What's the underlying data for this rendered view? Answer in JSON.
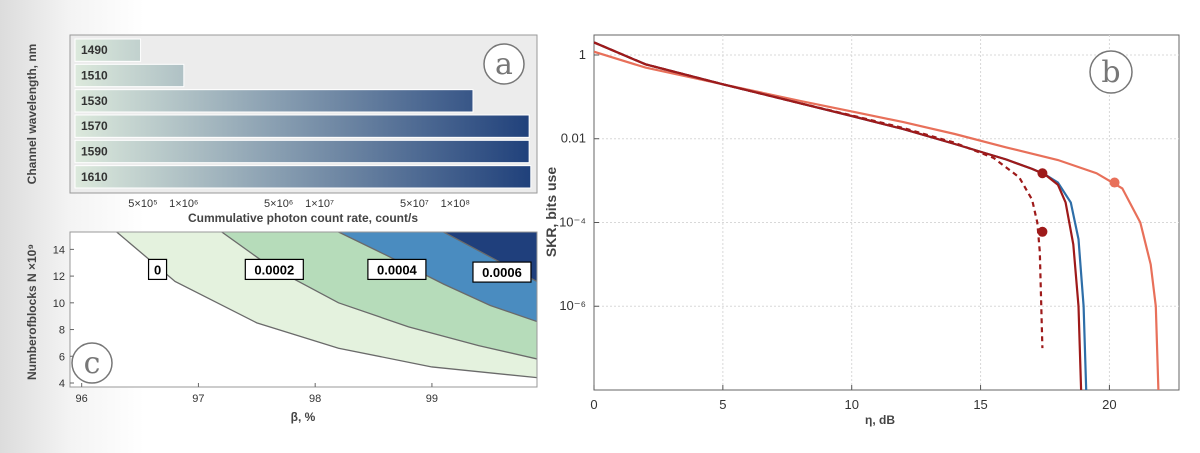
{
  "panels": {
    "a": {
      "letter": "a"
    },
    "b": {
      "letter": "b"
    },
    "c": {
      "letter": "c"
    }
  },
  "chart_data": [
    {
      "type": "bar",
      "panel": "a",
      "orientation": "horizontal",
      "xscale": "log",
      "xlabel": "Cummulative photon count rate, count/s",
      "ylabel": "Channel wavelength, nm",
      "xlim": [
        150000,
        400000000
      ],
      "xticks": [
        {
          "value": 500000,
          "label": "5×10⁵"
        },
        {
          "value": 1000000,
          "label": "1×10⁶"
        },
        {
          "value": 5000000,
          "label": "5×10⁶"
        },
        {
          "value": 10000000,
          "label": "1×10⁷"
        },
        {
          "value": 50000000,
          "label": "5×10⁷"
        },
        {
          "value": 100000000,
          "label": "1×10⁸"
        }
      ],
      "categories": [
        "1490",
        "1510",
        "1530",
        "1570",
        "1590",
        "1610"
      ],
      "values": [
        480000,
        1000000,
        135000000,
        350000000,
        350000000,
        360000000
      ],
      "colors": {
        "light": "#dce9dc",
        "dark": "#1e3f7a"
      }
    },
    {
      "type": "line",
      "panel": "b",
      "xlabel": "η, dB",
      "ylabel": "SKR, bits use",
      "yscale": "log",
      "xlim": [
        0,
        22.7
      ],
      "ylim": [
        1e-08,
        3
      ],
      "xticks": [
        {
          "value": 0,
          "label": "0"
        },
        {
          "value": 5,
          "label": "5"
        },
        {
          "value": 10,
          "label": "10"
        },
        {
          "value": 15,
          "label": "15"
        },
        {
          "value": 20,
          "label": "20"
        }
      ],
      "yticks": [
        {
          "value": 1,
          "label": "1"
        },
        {
          "value": 0.01,
          "label": "0.01"
        },
        {
          "value": 0.0001,
          "label": "10⁻⁴"
        },
        {
          "value": 1e-06,
          "label": "10⁻⁶"
        }
      ],
      "grid": true,
      "series": [
        {
          "color": "#e8705a",
          "dash": false,
          "x": [
            0,
            2,
            5,
            8,
            10,
            12,
            14,
            16,
            18,
            19.5,
            20.5,
            21.2,
            21.6,
            21.8,
            21.9
          ],
          "y": [
            1.2,
            0.5,
            0.2,
            0.08,
            0.045,
            0.025,
            0.013,
            0.0062,
            0.0031,
            0.0015,
            0.00065,
            0.0001,
            1e-05,
            1e-06,
            1e-08
          ],
          "marker": {
            "x": 20.2,
            "y": 0.0009,
            "color": "#e8705a"
          }
        },
        {
          "color": "#2e6ea8",
          "dash": false,
          "x": [
            0,
            2,
            5,
            8,
            10,
            12,
            14,
            16,
            17,
            17.5,
            18,
            18.5,
            18.8,
            19,
            19.1
          ],
          "y": [
            2,
            0.6,
            0.2,
            0.07,
            0.035,
            0.017,
            0.0075,
            0.0032,
            0.0019,
            0.0014,
            0.0009,
            0.0003,
            4e-05,
            1e-06,
            1e-08
          ],
          "marker": null
        },
        {
          "color": "#9e1a1a",
          "dash": false,
          "x": [
            0,
            2,
            5,
            8,
            10,
            12,
            14,
            16,
            17,
            17.5,
            18,
            18.3,
            18.6,
            18.8,
            18.9
          ],
          "y": [
            2,
            0.6,
            0.2,
            0.07,
            0.035,
            0.017,
            0.0075,
            0.0032,
            0.0019,
            0.0014,
            0.0008,
            0.0003,
            3e-05,
            1e-06,
            1e-08
          ],
          "marker": {
            "x": 17.4,
            "y": 0.0015,
            "color": "#9e1a1a"
          }
        },
        {
          "color": "#9e1a1a",
          "dash": true,
          "x": [
            0,
            2,
            5,
            8,
            10,
            12,
            14,
            15.5,
            16.5,
            17,
            17.2,
            17.3,
            17.4
          ],
          "y": [
            2,
            0.6,
            0.2,
            0.07,
            0.036,
            0.018,
            0.008,
            0.0035,
            0.0012,
            0.00035,
            0.0001,
            2e-05,
            1e-07
          ],
          "marker": {
            "x": 17.4,
            "y": 6e-05,
            "color": "#9e1a1a"
          }
        }
      ]
    },
    {
      "type": "contour",
      "panel": "c",
      "xlabel": "β, %",
      "ylabel": "Numberofblocks   N ×10⁹",
      "xlim": [
        95.9,
        99.9
      ],
      "ylim": [
        3.7,
        15.3
      ],
      "xticks": [
        {
          "value": 96,
          "label": "96"
        },
        {
          "value": 97,
          "label": "97"
        },
        {
          "value": 98,
          "label": "98"
        },
        {
          "value": 99,
          "label": "99"
        }
      ],
      "yticks": [
        {
          "value": 4,
          "label": "4"
        },
        {
          "value": 6,
          "label": "6"
        },
        {
          "value": 8,
          "label": "8"
        },
        {
          "value": 10,
          "label": "10"
        },
        {
          "value": 12,
          "label": "12"
        },
        {
          "value": 14,
          "label": "14"
        }
      ],
      "levels": [
        {
          "label": "0",
          "color": "#e4f2de",
          "boundary_x": [
            96.3,
            96.8,
            97.5,
            98.2,
            99.0,
            99.9
          ],
          "boundary_y": [
            15.3,
            11.6,
            8.5,
            6.6,
            5.2,
            4.4
          ],
          "label_at": [
            96.65,
            12.5
          ]
        },
        {
          "label": "0.0002",
          "color": "#b6dcba",
          "boundary_x": [
            97.2,
            97.6,
            98.2,
            98.8,
            99.4,
            99.9
          ],
          "boundary_y": [
            15.3,
            12.8,
            10.0,
            8.2,
            6.8,
            5.8
          ],
          "label_at": [
            97.65,
            12.5
          ]
        },
        {
          "label": "0.0004",
          "color": "#4a8cc0",
          "boundary_x": [
            98.2,
            98.6,
            99.1,
            99.5,
            99.9
          ],
          "boundary_y": [
            15.3,
            13.6,
            11.4,
            9.8,
            8.6
          ],
          "label_at": [
            98.7,
            12.5
          ]
        },
        {
          "label": "0.0006",
          "color": "#1f3f7c",
          "boundary_x": [
            99.1,
            99.4,
            99.7,
            99.9
          ],
          "boundary_y": [
            15.3,
            13.9,
            12.5,
            11.6
          ],
          "label_at": [
            99.6,
            12.3
          ]
        }
      ]
    }
  ]
}
